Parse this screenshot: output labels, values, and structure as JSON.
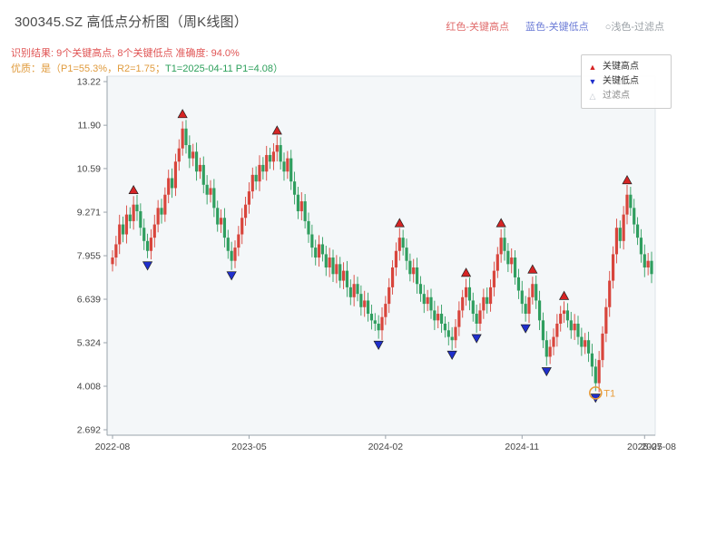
{
  "header": {
    "title": "300345.SZ 高低点分析图（周K线图）",
    "legend_inline": [
      {
        "label": "红色-关键高点",
        "color": "#e06c6c"
      },
      {
        "label": "蓝色-关键低点",
        "color": "#6b7bd6"
      },
      {
        "label": "○浅色-过滤点",
        "color": "#9aa0a6"
      }
    ],
    "result_line": {
      "text": "识别结果: 9个关键高点, 8个关键低点   准确度: 94.0%",
      "color": "#e05555"
    },
    "quality_line": {
      "part1": "优质：是（P1=55.3%，R2=1.75；",
      "part1_color": "#e09b3d",
      "part2": "T1=2025-04-11 P1=4.08）",
      "part2_color": "#2ea05c"
    }
  },
  "legend_box": {
    "items": [
      {
        "symbol": "▲",
        "label": "关键高点",
        "color": "#d62424"
      },
      {
        "symbol": "▼",
        "label": "关键低点",
        "color": "#1f2fcc"
      },
      {
        "symbol": "△",
        "label": "过滤点",
        "color": "#c0c6ce"
      }
    ]
  },
  "chart_data": {
    "type": "candlestick",
    "title": "300345.SZ 高低点分析图（周K线图）",
    "freq": "weekly",
    "start_label": "2022-08",
    "ylim": [
      2.692,
      13.22
    ],
    "yticks": [
      "13.22",
      "11.90",
      "10.59",
      "9.271",
      "7.955",
      "6.639",
      "5.324",
      "4.008",
      "2.692"
    ],
    "xticks": [
      {
        "label": "2022-08",
        "week": 0
      },
      {
        "label": "2023-05",
        "week": 39
      },
      {
        "label": "2024-02",
        "week": 78
      },
      {
        "label": "2024-11",
        "week": 117
      },
      {
        "label": "2025-07",
        "week": 152
      },
      {
        "label": "2025-08",
        "week": 156
      }
    ],
    "open_rule": "previous_close",
    "first_open": 7.7,
    "wick": 0.22,
    "close": [
      7.9,
      8.3,
      8.9,
      8.6,
      9.2,
      9.0,
      9.5,
      9.3,
      8.8,
      8.4,
      8.1,
      8.5,
      8.9,
      9.4,
      9.2,
      9.8,
      10.3,
      10.0,
      10.8,
      11.2,
      11.8,
      11.3,
      10.9,
      11.1,
      10.5,
      10.7,
      10.1,
      9.8,
      10.0,
      9.4,
      8.9,
      9.1,
      8.5,
      8.1,
      7.8,
      8.2,
      8.6,
      9.1,
      9.5,
      9.9,
      10.4,
      10.2,
      10.7,
      10.5,
      11.0,
      10.8,
      11.1,
      11.3,
      10.8,
      10.5,
      10.9,
      10.2,
      9.8,
      9.3,
      9.6,
      9.0,
      8.6,
      8.2,
      7.9,
      8.3,
      8.0,
      7.6,
      7.9,
      7.4,
      7.7,
      7.2,
      7.5,
      7.0,
      6.7,
      7.1,
      6.8,
      6.4,
      6.6,
      6.2,
      6.0,
      5.9,
      5.7,
      6.1,
      6.5,
      7.0,
      7.6,
      8.1,
      8.5,
      8.2,
      7.8,
      7.4,
      7.6,
      7.1,
      6.8,
      6.5,
      6.7,
      6.3,
      6.0,
      6.2,
      5.9,
      5.7,
      5.5,
      5.4,
      5.8,
      6.3,
      6.7,
      7.0,
      6.6,
      6.2,
      5.9,
      6.3,
      6.7,
      6.5,
      7.0,
      7.5,
      8.0,
      8.5,
      8.1,
      7.7,
      7.9,
      7.3,
      6.9,
      6.5,
      6.2,
      6.7,
      7.1,
      6.6,
      6.0,
      5.4,
      4.9,
      5.2,
      5.5,
      5.9,
      6.2,
      6.3,
      6.0,
      5.7,
      5.9,
      5.5,
      5.2,
      5.4,
      5.0,
      4.6,
      4.1,
      4.8,
      5.6,
      6.4,
      7.2,
      8.0,
      8.8,
      8.4,
      9.2,
      9.8,
      9.4,
      8.9,
      8.5,
      8.0,
      7.6,
      7.8,
      7.4
    ],
    "key_highs": [
      {
        "week": 6,
        "price": 9.5
      },
      {
        "week": 20,
        "price": 11.8
      },
      {
        "week": 47,
        "price": 11.3
      },
      {
        "week": 82,
        "price": 8.5
      },
      {
        "week": 101,
        "price": 7.0
      },
      {
        "week": 111,
        "price": 8.5
      },
      {
        "week": 120,
        "price": 7.1
      },
      {
        "week": 129,
        "price": 6.3
      },
      {
        "week": 147,
        "price": 9.8
      }
    ],
    "key_lows": [
      {
        "week": 10,
        "price": 8.1
      },
      {
        "week": 34,
        "price": 7.8
      },
      {
        "week": 76,
        "price": 5.7
      },
      {
        "week": 97,
        "price": 5.4
      },
      {
        "week": 104,
        "price": 5.9
      },
      {
        "week": 118,
        "price": 6.2
      },
      {
        "week": 124,
        "price": 4.9
      },
      {
        "week": 138,
        "price": 4.1
      }
    ],
    "t1_marker": {
      "week": 138,
      "price": 4.08,
      "label": "T1"
    },
    "colors": {
      "up": "#d8453c",
      "down": "#2f9e5f",
      "marker_high": "#d62424",
      "marker_low": "#1f2fcc",
      "filtered": "#c9ced6",
      "t1": "#e89c3a",
      "plot_bg": "#f4f7f9",
      "axis_text": "#444444",
      "spine": "#9aa3ab"
    }
  }
}
